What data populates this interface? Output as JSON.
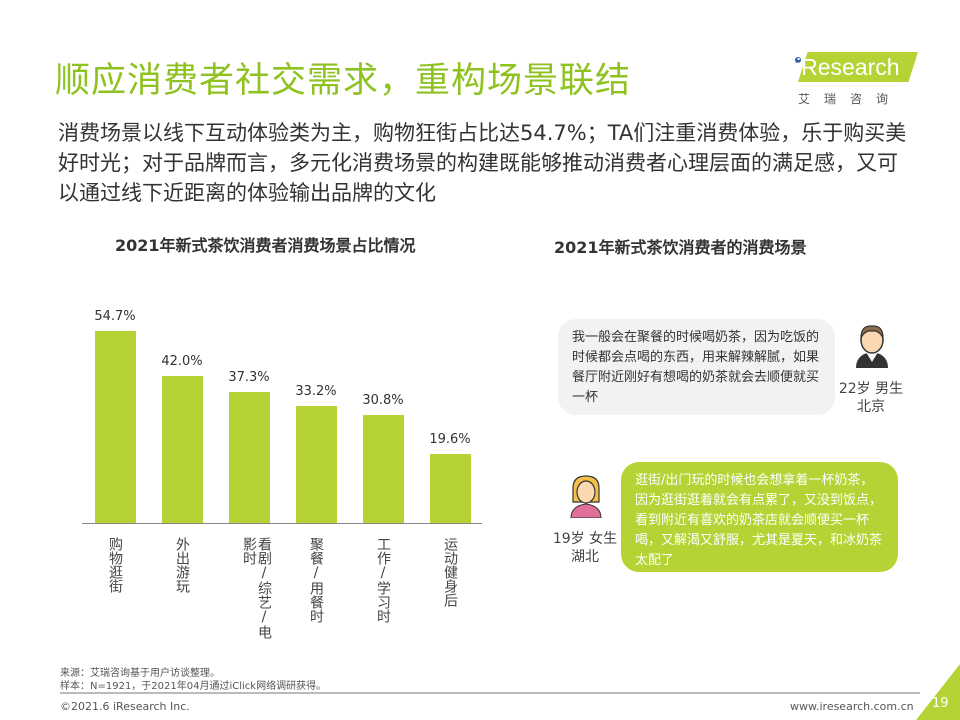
{
  "header": {
    "title": "顺应消费者社交需求，重构场景联结",
    "subtitle": "消费场景以线下互动体验类为主，购物狂街占比达54.7%；TA们注重消费体验，乐于购买美好时光；对于品牌而言，多元化消费场景的构建既能够推动消费者心理层面的满足感，又可以通过线下近距离的体验输出品牌的文化"
  },
  "logo": {
    "word": "iResearch",
    "cn": "艾瑞咨询"
  },
  "chart_data": {
    "type": "bar",
    "title": "2021年新式茶饮消费者消费场景占比情况",
    "categories": [
      "购物逛街",
      "外出游玩",
      "看剧/综艺/电影时",
      "聚餐/用餐时",
      "工作/学习时",
      "运动健身后"
    ],
    "values": [
      54.7,
      42.0,
      37.3,
      33.2,
      30.8,
      19.6
    ],
    "labels": [
      "54.7%",
      "42.0%",
      "37.3%",
      "33.2%",
      "30.8%",
      "19.6%"
    ],
    "unit": "%",
    "ylim": [
      0,
      60
    ],
    "grid": false,
    "color": "#b5d334"
  },
  "quotes": {
    "title": "2021年新式茶饮消费者的消费场景",
    "items": [
      {
        "text": "我一般会在聚餐的时候喝奶茶，因为吃饭的时候都会点喝的东西，用来解辣解腻，如果餐厅附近刚好有想喝的奶茶就会去顺便就买一杯",
        "persona_line1": "22岁 男生",
        "persona_line2": "北京",
        "icon": "male-avatar-icon"
      },
      {
        "text": "逛街/出门玩的时候也会想拿着一杯奶茶，因为逛街逛着就会有点累了，又没到饭点，看到附近有喜欢的奶茶店就会顺便买一杯喝，又解渴又舒服，尤其是夏天，和冰奶茶太配了",
        "persona_line1": "19岁 女生",
        "persona_line2": "湖北",
        "icon": "female-avatar-icon"
      }
    ]
  },
  "footer": {
    "source": "来源：艾瑞咨询基于用户访谈整理。",
    "sample": "样本：N=1921，于2021年04月通过iClick网络调研获得。",
    "copyright": "©2021.6 iResearch Inc.",
    "url": "www.iresearch.com.cn",
    "page": "19"
  }
}
